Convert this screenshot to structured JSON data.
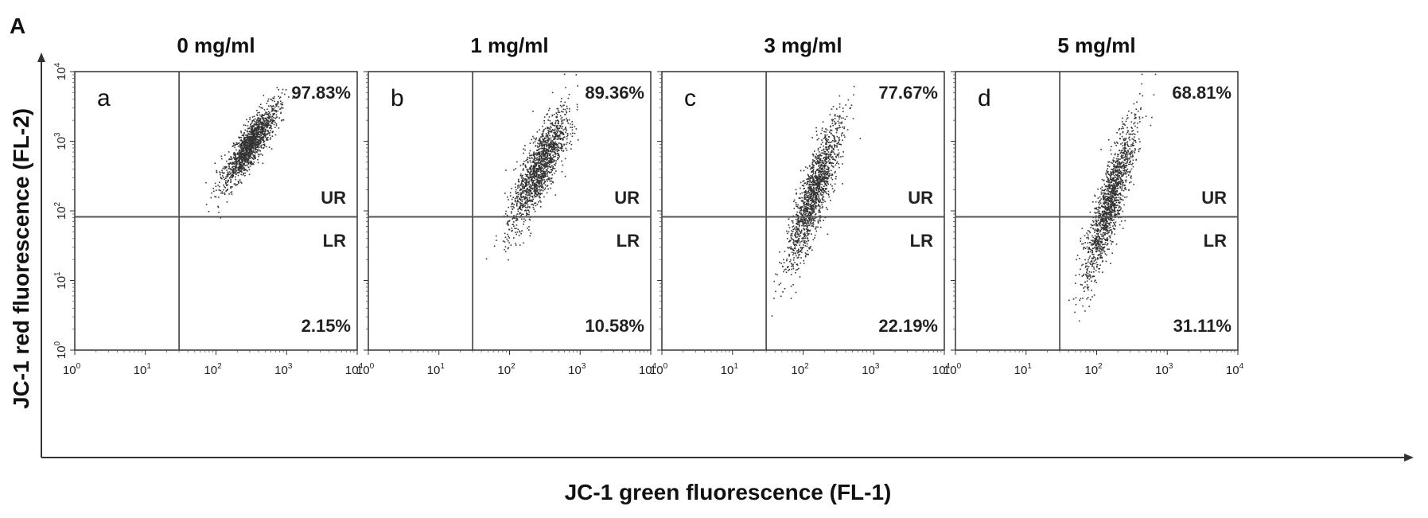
{
  "figure_label": "A",
  "chart_data": {
    "type": "scatter",
    "xlabel": "JC-1 green fluorescence (FL-1)",
    "ylabel": "JC-1 red fluorescence (FL-2)",
    "x_scale": "log",
    "y_scale": "log",
    "xlim": [
      1,
      10000
    ],
    "ylim": [
      1,
      10000
    ],
    "x_ticks": [
      {
        "base": "10",
        "exp": "0"
      },
      {
        "base": "10",
        "exp": "1"
      },
      {
        "base": "10",
        "exp": "2"
      },
      {
        "base": "10",
        "exp": "3"
      },
      {
        "base": "10",
        "exp": "4"
      }
    ],
    "y_ticks": [
      {
        "base": "10",
        "exp": "0"
      },
      {
        "base": "10",
        "exp": "1"
      },
      {
        "base": "10",
        "exp": "2"
      },
      {
        "base": "10",
        "exp": "3"
      },
      {
        "base": "10",
        "exp": "4"
      }
    ],
    "gate": {
      "x": 30,
      "y": 82
    },
    "point_color": "#333333",
    "panels": [
      {
        "title": "0 mg/ml",
        "letter": "a",
        "ur_label": "UR",
        "lr_label": "LR",
        "ur_percent": "97.83%",
        "lr_percent": "2.15%",
        "cloud_center": [
          300,
          900
        ],
        "cloud_spread": [
          0.17,
          0.28
        ]
      },
      {
        "title": "1 mg/ml",
        "letter": "b",
        "ur_label": "UR",
        "lr_label": "LR",
        "ur_percent": "89.36%",
        "lr_percent": "10.58%",
        "cloud_center": [
          260,
          420
        ],
        "cloud_spread": [
          0.19,
          0.42
        ]
      },
      {
        "title": "3 mg/ml",
        "letter": "c",
        "ur_label": "UR",
        "lr_label": "LR",
        "ur_percent": "77.67%",
        "lr_percent": "22.19%",
        "cloud_center": [
          140,
          180
        ],
        "cloud_spread": [
          0.17,
          0.5
        ]
      },
      {
        "title": "5 mg/ml",
        "letter": "d",
        "ur_label": "UR",
        "lr_label": "LR",
        "ur_percent": "68.81%",
        "lr_percent": "31.11%",
        "cloud_center": [
          150,
          130
        ],
        "cloud_spread": [
          0.16,
          0.55
        ]
      }
    ]
  }
}
